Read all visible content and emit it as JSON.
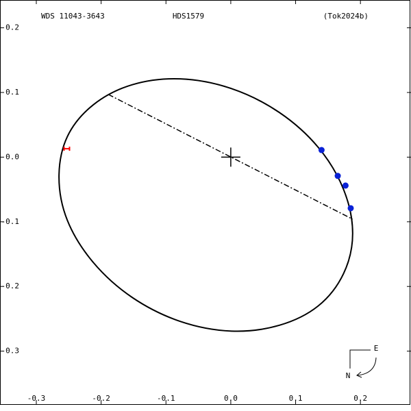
{
  "chart_data": {
    "type": "orbit",
    "title": "HDS1579",
    "left_title": "WDS 11043-3643",
    "right_title": "(Tok2024b)",
    "xlim": [
      -0.356,
      0.278
    ],
    "ylim": [
      -0.382,
      0.243
    ],
    "xticks": [
      -0.3,
      -0.2,
      -0.1,
      {
        "value": 0,
        "label": "0.0"
      },
      0.1,
      0.2
    ],
    "yticks": [
      -0.3,
      -0.2,
      -0.1,
      {
        "value": 0,
        "label": "0.0"
      },
      0.1,
      0.2
    ],
    "orbit": {
      "color": "#000000",
      "x": [
        0.188,
        0.174,
        0.135,
        0.075,
        0.001,
        -0.078,
        -0.152,
        -0.212,
        -0.252,
        -0.265,
        -0.252,
        -0.212,
        -0.152,
        -0.078,
        0.001,
        0.075,
        0.135,
        0.174
      ],
      "y": [
        -0.118,
        -0.18,
        -0.23,
        -0.26,
        -0.269,
        -0.254,
        -0.217,
        -0.163,
        -0.098,
        -0.031,
        0.032,
        0.081,
        0.112,
        0.121,
        0.106,
        0.069,
        0.015,
        -0.05
      ]
    },
    "apsides_line": {
      "color": "#000000",
      "x": [
        -0.189,
        0.188
      ],
      "y": [
        0.097,
        -0.096
      ]
    },
    "primary": {
      "x": 0,
      "y": 0
    },
    "observations": {
      "color": "#0a22d6",
      "x": [
        0.14,
        0.165,
        0.177,
        0.185
      ],
      "y": [
        0.011,
        -0.029,
        -0.044,
        -0.079
      ]
    },
    "rejected": {
      "color": "#ff0000",
      "x": [
        -0.253
      ],
      "y": [
        0.013
      ]
    },
    "compass": {
      "east": "E",
      "north": "N"
    }
  }
}
